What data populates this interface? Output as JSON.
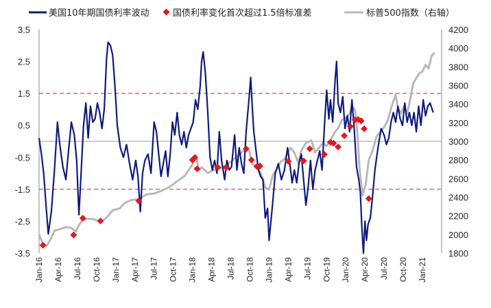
{
  "chart_data": {
    "type": "line",
    "title": "",
    "legend_position": "top",
    "x": {
      "labels": [
        "Jan-16",
        "Apr-16",
        "Jul-16",
        "Oct-16",
        "Jan-17",
        "Apr-17",
        "Jul-17",
        "Oct-17",
        "Jan-18",
        "Apr-18",
        "Jul-18",
        "Oct-18",
        "Jan-19",
        "Apr-19",
        "Jul-19",
        "Oct-19",
        "Jan-20",
        "Apr-20",
        "Jul-20",
        "Oct-20",
        "Jan-21"
      ],
      "start_year": 2016,
      "end_year": 2021.25
    },
    "y_left": {
      "min": -3.5,
      "max": 3.5,
      "ticks": [
        "3.5",
        "2.5",
        "1.5",
        "0.5",
        "-0.5",
        "-1.5",
        "-2.5",
        "-3.5"
      ]
    },
    "y_right": {
      "min": 1800,
      "max": 4200,
      "ticks": [
        "4200",
        "4000",
        "3800",
        "3600",
        "3400",
        "3200",
        "3000",
        "2800",
        "2600",
        "2400",
        "2200",
        "2000",
        "1800"
      ]
    },
    "thresholds": [
      1.5,
      -1.5
    ],
    "series": [
      {
        "name": "美国10年期国债利率波动",
        "axis": "left",
        "color": "#0d1a7d",
        "points": [
          [
            2016.0,
            0.1
          ],
          [
            2016.03,
            -0.4
          ],
          [
            2016.06,
            -1.0
          ],
          [
            2016.09,
            -2.0
          ],
          [
            2016.12,
            -2.9
          ],
          [
            2016.16,
            -2.2
          ],
          [
            2016.2,
            -0.9
          ],
          [
            2016.24,
            0.6
          ],
          [
            2016.27,
            -0.1
          ],
          [
            2016.31,
            -0.8
          ],
          [
            2016.35,
            -1.2
          ],
          [
            2016.38,
            -0.4
          ],
          [
            2016.42,
            0.6
          ],
          [
            2016.46,
            0.2
          ],
          [
            2016.49,
            -0.6
          ],
          [
            2016.52,
            -2.3
          ],
          [
            2016.55,
            -0.9
          ],
          [
            2016.58,
            0.5
          ],
          [
            2016.61,
            1.2
          ],
          [
            2016.64,
            0.1
          ],
          [
            2016.67,
            1.1
          ],
          [
            2016.7,
            0.6
          ],
          [
            2016.73,
            0.7
          ],
          [
            2016.76,
            1.2
          ],
          [
            2016.79,
            0.9
          ],
          [
            2016.82,
            0.4
          ],
          [
            2016.85,
            1.0
          ],
          [
            2016.88,
            2.6
          ],
          [
            2016.9,
            3.1
          ],
          [
            2016.93,
            3.0
          ],
          [
            2016.96,
            2.7
          ],
          [
            2016.99,
            1.7
          ],
          [
            2017.02,
            0.5
          ],
          [
            2017.06,
            -0.2
          ],
          [
            2017.1,
            -0.5
          ],
          [
            2017.14,
            -0.1
          ],
          [
            2017.18,
            -0.7
          ],
          [
            2017.22,
            -1.2
          ],
          [
            2017.26,
            -0.6
          ],
          [
            2017.29,
            -1.1
          ],
          [
            2017.32,
            -2.2
          ],
          [
            2017.35,
            -1.0
          ],
          [
            2017.38,
            -0.6
          ],
          [
            2017.42,
            -0.4
          ],
          [
            2017.46,
            -1.0
          ],
          [
            2017.5,
            0.6
          ],
          [
            2017.53,
            0.3
          ],
          [
            2017.56,
            -0.4
          ],
          [
            2017.59,
            -1.1
          ],
          [
            2017.62,
            -0.7
          ],
          [
            2017.65,
            -0.3
          ],
          [
            2017.68,
            -1.1
          ],
          [
            2017.71,
            -0.4
          ],
          [
            2017.74,
            0.6
          ],
          [
            2017.77,
            0.2
          ],
          [
            2017.8,
            0.9
          ],
          [
            2017.83,
            0.2
          ],
          [
            2017.86,
            -0.1
          ],
          [
            2017.89,
            0.3
          ],
          [
            2017.92,
            -0.2
          ],
          [
            2017.95,
            0.2
          ],
          [
            2017.98,
            0.4
          ],
          [
            2018.01,
            0.6
          ],
          [
            2018.04,
            1.3
          ],
          [
            2018.07,
            1.0
          ],
          [
            2018.1,
            1.7
          ],
          [
            2018.12,
            2.5
          ],
          [
            2018.14,
            2.8
          ],
          [
            2018.17,
            2.1
          ],
          [
            2018.2,
            0.9
          ],
          [
            2018.23,
            -0.5
          ],
          [
            2018.26,
            -0.9
          ],
          [
            2018.29,
            -0.6
          ],
          [
            2018.32,
            -1.0
          ],
          [
            2018.35,
            0.3
          ],
          [
            2018.38,
            -0.6
          ],
          [
            2018.42,
            -1.2
          ],
          [
            2018.45,
            -0.6
          ],
          [
            2018.48,
            -0.9
          ],
          [
            2018.51,
            -0.8
          ],
          [
            2018.55,
            0.2
          ],
          [
            2018.58,
            -0.9
          ],
          [
            2018.61,
            -0.2
          ],
          [
            2018.64,
            -0.7
          ],
          [
            2018.67,
            -1.0
          ],
          [
            2018.7,
            0.3
          ],
          [
            2018.74,
            1.4
          ],
          [
            2018.76,
            2.0
          ],
          [
            2018.78,
            1.1
          ],
          [
            2018.8,
            0.3
          ],
          [
            2018.83,
            -0.3
          ],
          [
            2018.86,
            -0.9
          ],
          [
            2018.89,
            -1.1
          ],
          [
            2018.92,
            -1.2
          ],
          [
            2018.95,
            -2.4
          ],
          [
            2018.98,
            -2.1
          ],
          [
            2019.0,
            -3.1
          ],
          [
            2019.04,
            -2.1
          ],
          [
            2019.08,
            -1.0
          ],
          [
            2019.12,
            -0.7
          ],
          [
            2019.16,
            -1.2
          ],
          [
            2019.2,
            -0.9
          ],
          [
            2019.24,
            -0.2
          ],
          [
            2019.27,
            -0.7
          ],
          [
            2019.3,
            -1.3
          ],
          [
            2019.33,
            -0.9
          ],
          [
            2019.36,
            -1.3
          ],
          [
            2019.39,
            -0.7
          ],
          [
            2019.42,
            -0.4
          ],
          [
            2019.45,
            -1.2
          ],
          [
            2019.48,
            -2.0
          ],
          [
            2019.51,
            -1.4
          ],
          [
            2019.54,
            -0.6
          ],
          [
            2019.57,
            -1.5
          ],
          [
            2019.6,
            -0.9
          ],
          [
            2019.63,
            -0.6
          ],
          [
            2019.66,
            -0.3
          ],
          [
            2019.69,
            -0.9
          ],
          [
            2019.72,
            0.4
          ],
          [
            2019.75,
            1.6
          ],
          [
            2019.78,
            0.7
          ],
          [
            2019.8,
            1.3
          ],
          [
            2019.83,
            0.6
          ],
          [
            2019.86,
            1.9
          ],
          [
            2019.88,
            2.5
          ],
          [
            2019.9,
            1.2
          ],
          [
            2019.93,
            0.9
          ],
          [
            2019.96,
            1.4
          ],
          [
            2019.99,
            0.4
          ],
          [
            2020.02,
            0.8
          ],
          [
            2020.05,
            0.3
          ],
          [
            2020.08,
            1.3
          ],
          [
            2020.11,
            0.4
          ],
          [
            2020.14,
            -0.8
          ],
          [
            2020.17,
            -1.2
          ],
          [
            2020.19,
            -1.6
          ],
          [
            2020.21,
            -2.7
          ],
          [
            2020.23,
            -3.5
          ],
          [
            2020.25,
            -2.5
          ],
          [
            2020.27,
            -3.1
          ],
          [
            2020.29,
            -2.6
          ],
          [
            2020.32,
            -2.4
          ],
          [
            2020.35,
            -1.7
          ],
          [
            2020.38,
            -0.9
          ],
          [
            2020.42,
            -0.2
          ],
          [
            2020.46,
            0.4
          ],
          [
            2020.5,
            0.2
          ],
          [
            2020.53,
            -0.1
          ],
          [
            2020.56,
            0.1
          ],
          [
            2020.59,
            0.6
          ],
          [
            2020.62,
            0.9
          ],
          [
            2020.65,
            0.6
          ],
          [
            2020.68,
            1.1
          ],
          [
            2020.71,
            0.7
          ],
          [
            2020.74,
            0.5
          ],
          [
            2020.77,
            1.2
          ],
          [
            2020.8,
            0.6
          ],
          [
            2020.83,
            0.9
          ],
          [
            2020.86,
            0.5
          ],
          [
            2020.89,
            0.9
          ],
          [
            2020.92,
            0.3
          ],
          [
            2020.95,
            1.1
          ],
          [
            2020.98,
            0.5
          ],
          [
            2021.01,
            1.3
          ],
          [
            2021.04,
            0.8
          ],
          [
            2021.07,
            1.1
          ],
          [
            2021.1,
            1.2
          ],
          [
            2021.14,
            0.9
          ]
        ]
      },
      {
        "name": "国债利率变化首次超过1.5倍标准差",
        "axis": "right",
        "marker": "diamond",
        "color": "#e8151b",
        "points": [
          [
            2016.05,
            1885
          ],
          [
            2016.45,
            1995
          ],
          [
            2016.57,
            2175
          ],
          [
            2016.8,
            2145
          ],
          [
            2017.3,
            2360
          ],
          [
            2018.0,
            2800
          ],
          [
            2018.03,
            2825
          ],
          [
            2018.06,
            2705
          ],
          [
            2018.33,
            2720
          ],
          [
            2018.44,
            2720
          ],
          [
            2018.7,
            2920
          ],
          [
            2018.77,
            2800
          ],
          [
            2018.84,
            2730
          ],
          [
            2018.88,
            2735
          ],
          [
            2019.25,
            2785
          ],
          [
            2019.45,
            2790
          ],
          [
            2019.53,
            2920
          ],
          [
            2019.72,
            2860
          ],
          [
            2019.8,
            2990
          ],
          [
            2019.84,
            2980
          ],
          [
            2019.9,
            2940
          ],
          [
            2019.98,
            3060
          ],
          [
            2020.06,
            3160
          ],
          [
            2020.12,
            3230
          ],
          [
            2020.16,
            3235
          ],
          [
            2020.2,
            3220
          ],
          [
            2020.24,
            3135
          ],
          [
            2020.3,
            2385
          ]
        ]
      },
      {
        "name": "标普500指数（右轴）",
        "axis": "right",
        "color": "#b8b8b8",
        "points": [
          [
            2016.0,
            2000
          ],
          [
            2016.05,
            1900
          ],
          [
            2016.1,
            1880
          ],
          [
            2016.15,
            1950
          ],
          [
            2016.2,
            2040
          ],
          [
            2016.28,
            2060
          ],
          [
            2016.35,
            2080
          ],
          [
            2016.42,
            2070
          ],
          [
            2016.48,
            2030
          ],
          [
            2016.52,
            2100
          ],
          [
            2016.58,
            2170
          ],
          [
            2016.7,
            2165
          ],
          [
            2016.8,
            2140
          ],
          [
            2016.85,
            2160
          ],
          [
            2016.9,
            2200
          ],
          [
            2016.96,
            2260
          ],
          [
            2017.05,
            2280
          ],
          [
            2017.12,
            2340
          ],
          [
            2017.2,
            2370
          ],
          [
            2017.3,
            2380
          ],
          [
            2017.4,
            2430
          ],
          [
            2017.5,
            2440
          ],
          [
            2017.6,
            2470
          ],
          [
            2017.7,
            2510
          ],
          [
            2017.8,
            2570
          ],
          [
            2017.9,
            2630
          ],
          [
            2018.0,
            2750
          ],
          [
            2018.05,
            2850
          ],
          [
            2018.08,
            2690
          ],
          [
            2018.12,
            2720
          ],
          [
            2018.2,
            2660
          ],
          [
            2018.3,
            2700
          ],
          [
            2018.4,
            2720
          ],
          [
            2018.5,
            2780
          ],
          [
            2018.6,
            2850
          ],
          [
            2018.68,
            2910
          ],
          [
            2018.74,
            2900
          ],
          [
            2018.78,
            2760
          ],
          [
            2018.85,
            2720
          ],
          [
            2018.9,
            2640
          ],
          [
            2018.95,
            2510
          ],
          [
            2019.0,
            2480
          ],
          [
            2019.05,
            2640
          ],
          [
            2019.1,
            2700
          ],
          [
            2019.15,
            2780
          ],
          [
            2019.2,
            2810
          ],
          [
            2019.28,
            2930
          ],
          [
            2019.33,
            2880
          ],
          [
            2019.38,
            2770
          ],
          [
            2019.42,
            2900
          ],
          [
            2019.48,
            2980
          ],
          [
            2019.55,
            3010
          ],
          [
            2019.6,
            2880
          ],
          [
            2019.65,
            2930
          ],
          [
            2019.7,
            2980
          ],
          [
            2019.75,
            2950
          ],
          [
            2019.8,
            3010
          ],
          [
            2019.85,
            3090
          ],
          [
            2019.9,
            3140
          ],
          [
            2019.95,
            3230
          ],
          [
            2020.0,
            3250
          ],
          [
            2020.05,
            3300
          ],
          [
            2020.08,
            3370
          ],
          [
            2020.12,
            3340
          ],
          [
            2020.15,
            3100
          ],
          [
            2020.18,
            2700
          ],
          [
            2020.22,
            2420
          ],
          [
            2020.26,
            2540
          ],
          [
            2020.3,
            2800
          ],
          [
            2020.35,
            2900
          ],
          [
            2020.4,
            3050
          ],
          [
            2020.45,
            3100
          ],
          [
            2020.5,
            3150
          ],
          [
            2020.55,
            3230
          ],
          [
            2020.6,
            3380
          ],
          [
            2020.65,
            3500
          ],
          [
            2020.68,
            3360
          ],
          [
            2020.72,
            3300
          ],
          [
            2020.76,
            3380
          ],
          [
            2020.8,
            3300
          ],
          [
            2020.84,
            3450
          ],
          [
            2020.88,
            3620
          ],
          [
            2020.92,
            3680
          ],
          [
            2020.96,
            3730
          ],
          [
            2021.0,
            3750
          ],
          [
            2021.04,
            3820
          ],
          [
            2021.08,
            3780
          ],
          [
            2021.12,
            3920
          ],
          [
            2021.16,
            3950
          ]
        ]
      }
    ]
  }
}
